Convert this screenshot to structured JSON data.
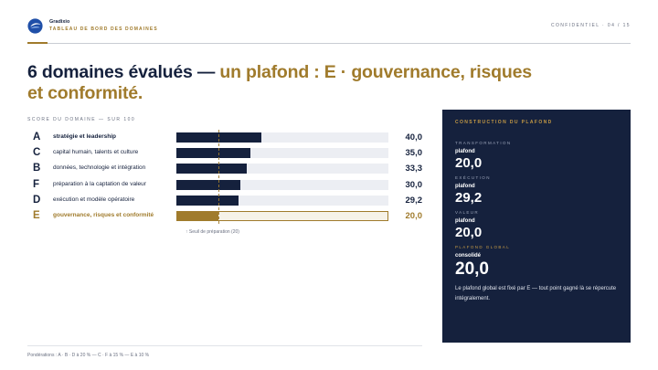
{
  "header": {
    "brand": "Gradixio",
    "subtitle": "TABLEAU DE BORD DES DOMAINES",
    "confidential": "CONFIDENTIEL · 04 / 15",
    "accent_color": "#a07b2c",
    "navy_color": "#15213d"
  },
  "title": {
    "main": "6 domaines évalués — ",
    "accent": "un plafond : E · gouvernance, risques et conformité."
  },
  "section_label": "SCORE DU DOMAINE — SUR 100",
  "chart_data": {
    "type": "bar",
    "orientation": "horizontal",
    "xlim": [
      0,
      100
    ],
    "threshold": 20,
    "categories": [
      "A",
      "C",
      "B",
      "F",
      "D",
      "E"
    ],
    "labels": [
      "stratégie et leadership",
      "capital humain, talents et culture",
      "données, technologie et intégration",
      "préparation à la captation de valeur",
      "exécution et modèle opératoire",
      "gouvernance, risques et conformité"
    ],
    "values": [
      40.0,
      35.0,
      33.3,
      30.0,
      29.2,
      20.0
    ],
    "value_labels": [
      "40,0",
      "35,0",
      "33,3",
      "30,0",
      "29,2",
      "20,0"
    ],
    "highlight": "E",
    "threshold_note": "↑ Seuil de préparation (20)"
  },
  "panel": {
    "title": "CONSTRUCTION DU PLAFOND",
    "items": [
      {
        "key": "TRANSFORMATION",
        "sub": "plafond",
        "value": "20,0"
      },
      {
        "key": "EXÉCUTION",
        "sub": "plafond",
        "value": "29,2"
      },
      {
        "key": "VALEUR",
        "sub": "plafond",
        "value": "20,0"
      },
      {
        "key": "PLAFOND GLOBAL",
        "sub": "consolidé",
        "value": "20,0"
      }
    ],
    "note": "Le plafond global est fixé par E — tout point gagné là se répercute intégralement."
  },
  "footer": "Pondérations : A · B · D à 20 % — C · F à 15 % — E à 10 %"
}
